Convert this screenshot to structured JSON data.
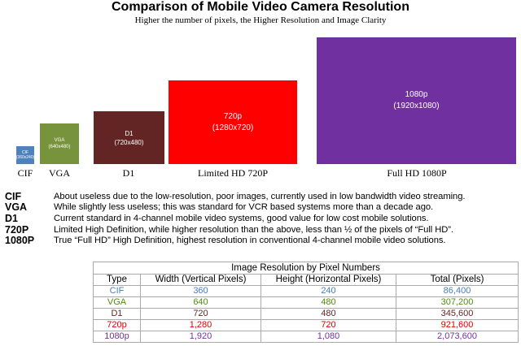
{
  "header": {
    "title": "Comparison of Mobile Video Camera Resolution",
    "subtitle": "Higher the number of pixels, the Higher Resolution and Image Clarity"
  },
  "boxes": [
    {
      "key": "cif",
      "name": "CIF",
      "res": "(360x240)",
      "caption": "CIF",
      "color": "#4f81bd"
    },
    {
      "key": "vga",
      "name": "VGA",
      "res": "(640x480)",
      "caption": "VGA",
      "color": "#77933c"
    },
    {
      "key": "d1",
      "name": "D1",
      "res": "(720x480)",
      "caption": "D1",
      "color": "#632523"
    },
    {
      "key": "720p",
      "name": "720p",
      "res": "(1280x720)",
      "caption": "Limited HD 720P",
      "color": "#ff0000"
    },
    {
      "key": "1080p",
      "name": "1080p",
      "res": "(1920x1080)",
      "caption": "Full HD 1080P",
      "color": "#7030a0"
    }
  ],
  "descriptions": [
    {
      "term": "CIF",
      "text": "About useless due to the low-resolution, poor images, currently used in low bandwidth video streaming."
    },
    {
      "term": "VGA",
      "text": "While slightly less useless; this was standard for VCR based systems more than a decade ago."
    },
    {
      "term": "D1",
      "text": "Current standard in 4-channel mobile video systems, good value for low cost mobile solutions."
    },
    {
      "term": "720P",
      "text": "Limited High Definition, while higher resolution than the above, less than ½  of the pixels of “Full HD”."
    },
    {
      "term": "1080P",
      "text": "True “Full HD” High Definition, highest resolution in conventional 4-channel mobile video solutions."
    }
  ],
  "table": {
    "caption": "Image Resolution by Pixel Numbers",
    "headers": [
      "Type",
      "Width (Vertical Pixels)",
      "Height (Horizontal Pixels)",
      "Total (Pixels)"
    ],
    "rows": [
      {
        "type": "CIF",
        "width": "360",
        "height": "240",
        "total": "86,400",
        "color": "#4a7ebb"
      },
      {
        "type": "VGA",
        "width": "640",
        "height": "480",
        "total": "307,200",
        "color": "#4f8a10"
      },
      {
        "type": "D1",
        "width": "720",
        "height": "480",
        "total": "345,600",
        "color": "#632523"
      },
      {
        "type": "720p",
        "width": "1,280",
        "height": "720",
        "total": "921,600",
        "color": "#e00000"
      },
      {
        "type": "1080p",
        "width": "1,920",
        "height": "1,080",
        "total": "2,073,600",
        "color": "#7030a0"
      }
    ]
  }
}
